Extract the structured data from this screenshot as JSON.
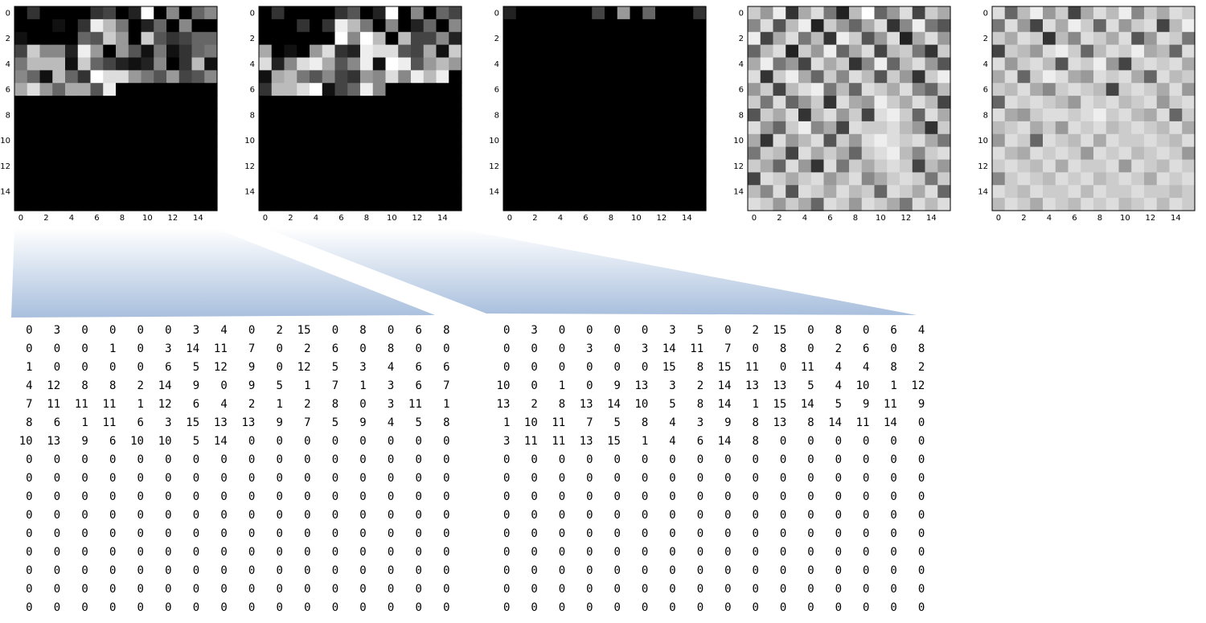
{
  "tick_labels": [
    "0",
    "2",
    "4",
    "6",
    "8",
    "10",
    "12",
    "14"
  ],
  "heatmaps": [
    {
      "id": "heatmap-1",
      "rows": [
        [
          0,
          3,
          0,
          0,
          0,
          0,
          3,
          4,
          0,
          2,
          15,
          0,
          8,
          0,
          6,
          8
        ],
        [
          0,
          0,
          0,
          1,
          0,
          3,
          14,
          11,
          7,
          0,
          2,
          6,
          0,
          8,
          0,
          0
        ],
        [
          1,
          0,
          0,
          0,
          0,
          6,
          5,
          12,
          9,
          0,
          12,
          5,
          3,
          4,
          6,
          6
        ],
        [
          4,
          12,
          8,
          8,
          2,
          14,
          9,
          0,
          9,
          5,
          1,
          7,
          1,
          3,
          6,
          7
        ],
        [
          7,
          11,
          11,
          11,
          1,
          12,
          6,
          4,
          2,
          1,
          2,
          8,
          0,
          3,
          11,
          1
        ],
        [
          8,
          6,
          1,
          11,
          6,
          3,
          15,
          13,
          13,
          9,
          7,
          5,
          9,
          4,
          5,
          8
        ],
        [
          10,
          13,
          9,
          6,
          10,
          10,
          5,
          14,
          0,
          0,
          0,
          0,
          0,
          0,
          0,
          0
        ],
        [
          0,
          0,
          0,
          0,
          0,
          0,
          0,
          0,
          0,
          0,
          0,
          0,
          0,
          0,
          0,
          0
        ],
        [
          0,
          0,
          0,
          0,
          0,
          0,
          0,
          0,
          0,
          0,
          0,
          0,
          0,
          0,
          0,
          0
        ],
        [
          0,
          0,
          0,
          0,
          0,
          0,
          0,
          0,
          0,
          0,
          0,
          0,
          0,
          0,
          0,
          0
        ],
        [
          0,
          0,
          0,
          0,
          0,
          0,
          0,
          0,
          0,
          0,
          0,
          0,
          0,
          0,
          0,
          0
        ],
        [
          0,
          0,
          0,
          0,
          0,
          0,
          0,
          0,
          0,
          0,
          0,
          0,
          0,
          0,
          0,
          0
        ],
        [
          0,
          0,
          0,
          0,
          0,
          0,
          0,
          0,
          0,
          0,
          0,
          0,
          0,
          0,
          0,
          0
        ],
        [
          0,
          0,
          0,
          0,
          0,
          0,
          0,
          0,
          0,
          0,
          0,
          0,
          0,
          0,
          0,
          0
        ],
        [
          0,
          0,
          0,
          0,
          0,
          0,
          0,
          0,
          0,
          0,
          0,
          0,
          0,
          0,
          0,
          0
        ],
        [
          0,
          0,
          0,
          0,
          0,
          0,
          0,
          0,
          0,
          0,
          0,
          0,
          0,
          0,
          0,
          0
        ]
      ]
    },
    {
      "id": "heatmap-2",
      "rows": [
        [
          0,
          3,
          0,
          0,
          0,
          0,
          3,
          5,
          0,
          2,
          15,
          0,
          8,
          0,
          6,
          4
        ],
        [
          0,
          0,
          0,
          3,
          0,
          3,
          14,
          11,
          7,
          0,
          8,
          0,
          2,
          6,
          0,
          8
        ],
        [
          0,
          0,
          0,
          0,
          0,
          0,
          15,
          8,
          15,
          11,
          0,
          11,
          4,
          4,
          8,
          2
        ],
        [
          10,
          0,
          1,
          0,
          9,
          13,
          3,
          2,
          14,
          13,
          13,
          5,
          4,
          10,
          1,
          12
        ],
        [
          13,
          2,
          8,
          13,
          14,
          10,
          5,
          8,
          14,
          1,
          15,
          14,
          5,
          9,
          11,
          9
        ],
        [
          1,
          10,
          11,
          7,
          5,
          8,
          4,
          3,
          9,
          8,
          13,
          8,
          14,
          11,
          14,
          0
        ],
        [
          3,
          11,
          11,
          13,
          15,
          1,
          4,
          6,
          14,
          8,
          0,
          0,
          0,
          0,
          0,
          0
        ],
        [
          0,
          0,
          0,
          0,
          0,
          0,
          0,
          0,
          0,
          0,
          0,
          0,
          0,
          0,
          0,
          0
        ],
        [
          0,
          0,
          0,
          0,
          0,
          0,
          0,
          0,
          0,
          0,
          0,
          0,
          0,
          0,
          0,
          0
        ],
        [
          0,
          0,
          0,
          0,
          0,
          0,
          0,
          0,
          0,
          0,
          0,
          0,
          0,
          0,
          0,
          0
        ],
        [
          0,
          0,
          0,
          0,
          0,
          0,
          0,
          0,
          0,
          0,
          0,
          0,
          0,
          0,
          0,
          0
        ],
        [
          0,
          0,
          0,
          0,
          0,
          0,
          0,
          0,
          0,
          0,
          0,
          0,
          0,
          0,
          0,
          0
        ],
        [
          0,
          0,
          0,
          0,
          0,
          0,
          0,
          0,
          0,
          0,
          0,
          0,
          0,
          0,
          0,
          0
        ],
        [
          0,
          0,
          0,
          0,
          0,
          0,
          0,
          0,
          0,
          0,
          0,
          0,
          0,
          0,
          0,
          0
        ],
        [
          0,
          0,
          0,
          0,
          0,
          0,
          0,
          0,
          0,
          0,
          0,
          0,
          0,
          0,
          0,
          0
        ],
        [
          0,
          0,
          0,
          0,
          0,
          0,
          0,
          0,
          0,
          0,
          0,
          0,
          0,
          0,
          0,
          0
        ]
      ]
    },
    {
      "id": "heatmap-3",
      "rows": [
        [
          2,
          0,
          0,
          0,
          0,
          0,
          0,
          4,
          0,
          9,
          0,
          6,
          0,
          0,
          0,
          3
        ],
        [
          0,
          0,
          0,
          0,
          0,
          0,
          0,
          0,
          0,
          0,
          0,
          0,
          0,
          0,
          0,
          0
        ],
        [
          0,
          0,
          0,
          0,
          0,
          0,
          0,
          0,
          0,
          0,
          0,
          0,
          0,
          0,
          0,
          0
        ],
        [
          0,
          0,
          0,
          0,
          0,
          0,
          0,
          0,
          0,
          0,
          0,
          0,
          0,
          0,
          0,
          0
        ],
        [
          0,
          0,
          0,
          0,
          0,
          0,
          0,
          0,
          0,
          0,
          0,
          0,
          0,
          0,
          0,
          0
        ],
        [
          0,
          0,
          0,
          0,
          0,
          0,
          0,
          0,
          0,
          0,
          0,
          0,
          0,
          0,
          0,
          0
        ],
        [
          0,
          0,
          0,
          0,
          0,
          0,
          0,
          0,
          0,
          0,
          0,
          0,
          0,
          0,
          0,
          0
        ],
        [
          0,
          0,
          0,
          0,
          0,
          0,
          0,
          0,
          0,
          0,
          0,
          0,
          0,
          0,
          0,
          0
        ],
        [
          0,
          0,
          0,
          0,
          0,
          0,
          0,
          0,
          0,
          0,
          0,
          0,
          0,
          0,
          0,
          0
        ],
        [
          0,
          0,
          0,
          0,
          0,
          0,
          0,
          0,
          0,
          0,
          0,
          0,
          0,
          0,
          0,
          0
        ],
        [
          0,
          0,
          0,
          0,
          0,
          0,
          0,
          0,
          0,
          0,
          0,
          0,
          0,
          0,
          0,
          0
        ],
        [
          0,
          0,
          0,
          0,
          0,
          0,
          0,
          0,
          0,
          0,
          0,
          0,
          0,
          0,
          0,
          0
        ],
        [
          0,
          0,
          0,
          0,
          0,
          0,
          0,
          0,
          0,
          0,
          0,
          0,
          0,
          0,
          0,
          0
        ],
        [
          0,
          0,
          0,
          0,
          0,
          0,
          0,
          0,
          0,
          0,
          0,
          0,
          0,
          0,
          0,
          0
        ],
        [
          0,
          0,
          0,
          0,
          0,
          0,
          0,
          0,
          0,
          0,
          0,
          0,
          0,
          0,
          0,
          0
        ],
        [
          0,
          0,
          0,
          0,
          0,
          0,
          0,
          0,
          0,
          0,
          0,
          0,
          0,
          0,
          0,
          0
        ]
      ]
    },
    {
      "id": "heatmap-4",
      "rows": [
        [
          12,
          9,
          14,
          3,
          10,
          13,
          7,
          2,
          11,
          15,
          6,
          9,
          13,
          4,
          12,
          10
        ],
        [
          8,
          13,
          5,
          11,
          14,
          2,
          12,
          9,
          6,
          10,
          13,
          3,
          8,
          14,
          7,
          5
        ],
        [
          14,
          4,
          10,
          13,
          7,
          11,
          3,
          14,
          12,
          5,
          9,
          13,
          2,
          10,
          13,
          9
        ],
        [
          6,
          11,
          13,
          2,
          12,
          9,
          14,
          6,
          10,
          13,
          4,
          11,
          12,
          7,
          3,
          12
        ],
        [
          10,
          14,
          7,
          9,
          4,
          13,
          10,
          12,
          3,
          8,
          14,
          6,
          11,
          13,
          9,
          5
        ],
        [
          13,
          3,
          12,
          14,
          10,
          6,
          12,
          8,
          13,
          11,
          5,
          12,
          9,
          3,
          12,
          14
        ],
        [
          9,
          12,
          4,
          11,
          13,
          14,
          7,
          11,
          6,
          13,
          12,
          10,
          13,
          8,
          6,
          11
        ],
        [
          12,
          7,
          13,
          6,
          9,
          12,
          3,
          13,
          10,
          9,
          14,
          12,
          10,
          13,
          11,
          4
        ],
        [
          5,
          12,
          10,
          13,
          3,
          11,
          13,
          9,
          12,
          4,
          13,
          14,
          12,
          6,
          13,
          10
        ],
        [
          13,
          9,
          6,
          12,
          14,
          8,
          10,
          4,
          13,
          12,
          12,
          13,
          11,
          9,
          3,
          12
        ],
        [
          10,
          3,
          13,
          9,
          11,
          13,
          5,
          12,
          9,
          13,
          14,
          13,
          12,
          13,
          10,
          7
        ],
        [
          7,
          12,
          11,
          4,
          13,
          10,
          12,
          10,
          6,
          12,
          13,
          14,
          11,
          8,
          12,
          13
        ],
        [
          12,
          10,
          6,
          13,
          9,
          3,
          13,
          7,
          12,
          10,
          12,
          13,
          12,
          4,
          11,
          9
        ],
        [
          4,
          13,
          12,
          10,
          12,
          13,
          9,
          11,
          13,
          8,
          10,
          12,
          13,
          12,
          7,
          12
        ],
        [
          11,
          8,
          13,
          5,
          13,
          12,
          10,
          13,
          11,
          12,
          6,
          13,
          12,
          10,
          13,
          6
        ],
        [
          13,
          12,
          9,
          12,
          10,
          6,
          13,
          12,
          9,
          13,
          12,
          10,
          7,
          13,
          11,
          13
        ]
      ]
    },
    {
      "id": "heatmap-5",
      "rows": [
        [
          13,
          6,
          11,
          14,
          9,
          12,
          4,
          10,
          13,
          11,
          14,
          8,
          12,
          10,
          13,
          12
        ],
        [
          7,
          13,
          9,
          4,
          13,
          10,
          14,
          12,
          6,
          13,
          9,
          12,
          13,
          4,
          11,
          14
        ],
        [
          12,
          10,
          13,
          12,
          3,
          11,
          8,
          13,
          12,
          10,
          13,
          5,
          9,
          13,
          12,
          7
        ],
        [
          4,
          12,
          11,
          9,
          13,
          14,
          12,
          6,
          11,
          13,
          12,
          14,
          10,
          11,
          6,
          13
        ],
        [
          13,
          9,
          12,
          13,
          11,
          5,
          13,
          12,
          14,
          9,
          4,
          12,
          13,
          12,
          13,
          10
        ],
        [
          10,
          13,
          6,
          12,
          14,
          13,
          10,
          9,
          13,
          12,
          13,
          10,
          6,
          13,
          11,
          12
        ],
        [
          12,
          11,
          13,
          10,
          8,
          12,
          13,
          12,
          11,
          4,
          12,
          13,
          12,
          10,
          13,
          9
        ],
        [
          6,
          13,
          12,
          13,
          12,
          11,
          9,
          13,
          12,
          13,
          11,
          12,
          13,
          9,
          12,
          13
        ],
        [
          13,
          10,
          9,
          12,
          13,
          13,
          12,
          13,
          14,
          12,
          13,
          11,
          10,
          13,
          6,
          12
        ],
        [
          11,
          12,
          13,
          10,
          12,
          9,
          13,
          12,
          13,
          11,
          12,
          13,
          12,
          11,
          13,
          10
        ],
        [
          9,
          13,
          12,
          6,
          13,
          12,
          11,
          13,
          10,
          13,
          12,
          12,
          13,
          12,
          11,
          13
        ],
        [
          13,
          11,
          10,
          13,
          12,
          13,
          12,
          9,
          13,
          12,
          13,
          11,
          12,
          13,
          12,
          9
        ],
        [
          12,
          13,
          12,
          11,
          13,
          10,
          13,
          12,
          12,
          13,
          9,
          13,
          12,
          11,
          13,
          12
        ],
        [
          8,
          12,
          13,
          12,
          11,
          13,
          12,
          13,
          11,
          12,
          13,
          12,
          10,
          13,
          12,
          13
        ],
        [
          13,
          12,
          11,
          13,
          12,
          12,
          13,
          11,
          13,
          12,
          12,
          13,
          12,
          12,
          11,
          12
        ],
        [
          11,
          13,
          12,
          10,
          13,
          12,
          11,
          13,
          12,
          13,
          11,
          12,
          13,
          11,
          13,
          12
        ]
      ]
    }
  ],
  "colors": {
    "heatmap_low": "#000000",
    "heatmap_high": "#ffffff",
    "connector_top": "#ffffff",
    "connector_bottom": "#a8bfdd"
  }
}
